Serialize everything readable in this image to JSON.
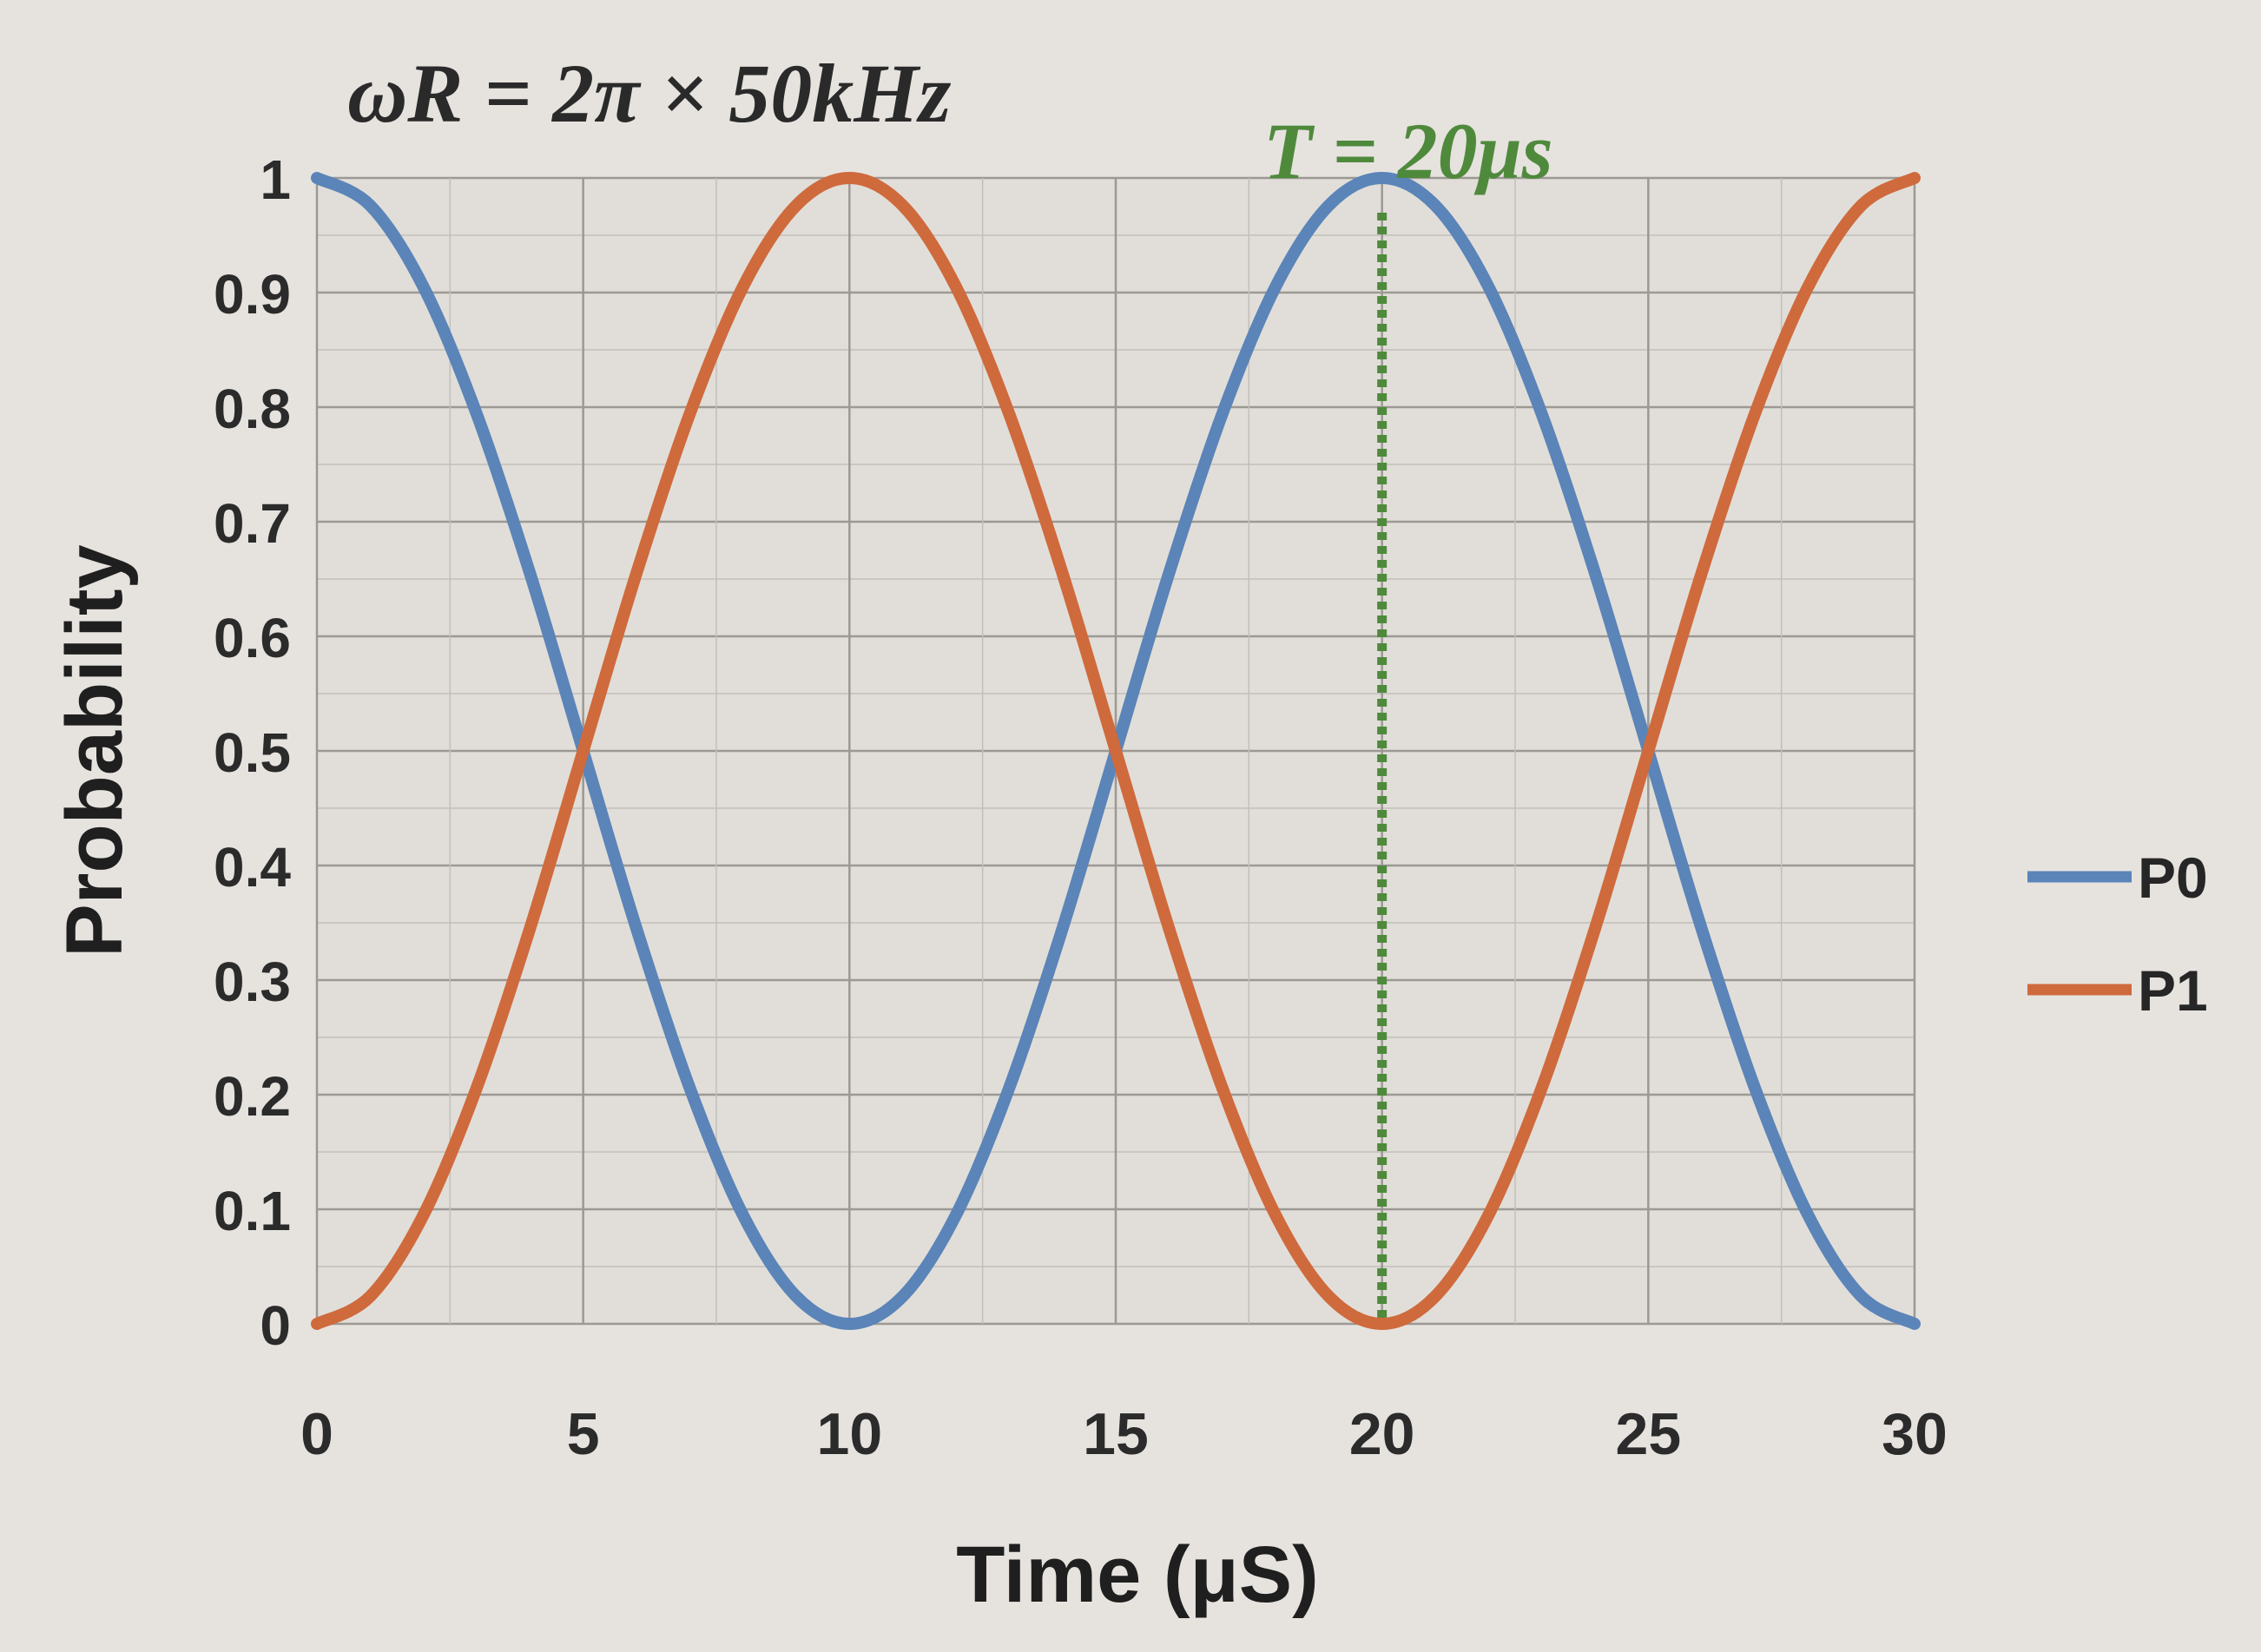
{
  "chart_data": {
    "type": "line",
    "title": "ωR = 2π × 50kHz",
    "annotation": {
      "text": "T = 20μs",
      "x": 20,
      "style": "dotted vertical line",
      "color": "#4f8a3c"
    },
    "xlabel": "Time (μS)",
    "ylabel": "Probability",
    "xlim": [
      0,
      30
    ],
    "ylim": [
      0,
      1
    ],
    "xticks": [
      "0",
      "5",
      "10",
      "15",
      "20",
      "25",
      "30"
    ],
    "yticks": [
      "0",
      "0.1",
      "0.2",
      "0.3",
      "0.4",
      "0.5",
      "0.6",
      "0.7",
      "0.8",
      "0.9",
      "1"
    ],
    "grid": true,
    "legend_position": "right",
    "x": [
      0,
      1,
      2,
      3,
      4,
      5,
      6,
      7,
      8,
      9,
      10,
      11,
      12,
      13,
      14,
      15,
      16,
      17,
      18,
      19,
      20,
      21,
      22,
      23,
      24,
      25,
      26,
      27,
      28,
      29,
      30
    ],
    "series": [
      {
        "name": "P0",
        "color": "#5b84b8",
        "values": [
          1.0,
          0.976,
          0.905,
          0.794,
          0.655,
          0.5,
          0.345,
          0.206,
          0.095,
          0.024,
          0.0,
          0.024,
          0.095,
          0.206,
          0.345,
          0.5,
          0.655,
          0.794,
          0.905,
          0.976,
          1.0,
          0.976,
          0.905,
          0.794,
          0.655,
          0.5,
          0.345,
          0.206,
          0.095,
          0.024,
          0.0
        ]
      },
      {
        "name": "P1",
        "color": "#cf6a3c",
        "values": [
          0.0,
          0.024,
          0.095,
          0.206,
          0.345,
          0.5,
          0.655,
          0.794,
          0.905,
          0.976,
          1.0,
          0.976,
          0.905,
          0.794,
          0.655,
          0.5,
          0.345,
          0.206,
          0.095,
          0.024,
          0.0,
          0.024,
          0.095,
          0.206,
          0.345,
          0.5,
          0.655,
          0.794,
          0.905,
          0.976,
          1.0
        ]
      }
    ]
  }
}
